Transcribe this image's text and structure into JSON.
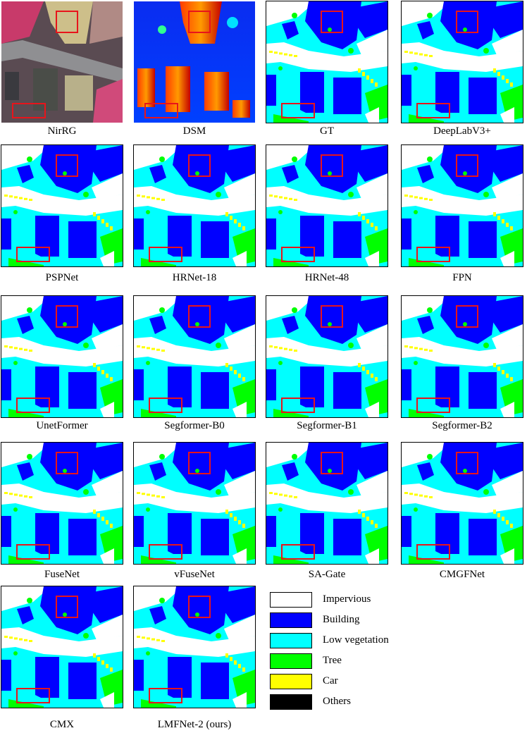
{
  "colors": {
    "impervious": "#ffffff",
    "building": "#0000ff",
    "low_vegetation": "#00ffff",
    "tree": "#00ff00",
    "car": "#ffff00",
    "others": "#000000",
    "highlight_box": "#e8141b"
  },
  "panels": [
    {
      "caption": "NirRG",
      "kind": "nirrg"
    },
    {
      "caption": "DSM",
      "kind": "dsm"
    },
    {
      "caption": "GT",
      "kind": "seg"
    },
    {
      "caption": "DeepLabV3+",
      "kind": "seg"
    },
    {
      "caption": "PSPNet",
      "kind": "seg"
    },
    {
      "caption": "HRNet-18",
      "kind": "seg"
    },
    {
      "caption": "HRNet-48",
      "kind": "seg"
    },
    {
      "caption": "FPN",
      "kind": "seg"
    },
    {
      "caption": "UnetFormer",
      "kind": "seg"
    },
    {
      "caption": "Segformer-B0",
      "kind": "seg"
    },
    {
      "caption": "Segformer-B1",
      "kind": "seg"
    },
    {
      "caption": "Segformer-B2",
      "kind": "seg"
    },
    {
      "caption": "FuseNet",
      "kind": "seg"
    },
    {
      "caption": "vFuseNet",
      "kind": "seg"
    },
    {
      "caption": "SA-Gate",
      "kind": "seg"
    },
    {
      "caption": "CMGFNet",
      "kind": "seg"
    },
    {
      "caption": "CMX",
      "kind": "seg"
    },
    {
      "caption": "LMFNet-2 (ours)",
      "kind": "seg"
    }
  ],
  "legend": [
    {
      "label": "Impervious",
      "color": "#ffffff"
    },
    {
      "label": "Building",
      "color": "#0000ff"
    },
    {
      "label": "Low vegetation",
      "color": "#00ffff"
    },
    {
      "label": "Tree",
      "color": "#00ff00"
    },
    {
      "label": "Car",
      "color": "#ffff00"
    },
    {
      "label": "Others",
      "color": "#000000"
    }
  ]
}
